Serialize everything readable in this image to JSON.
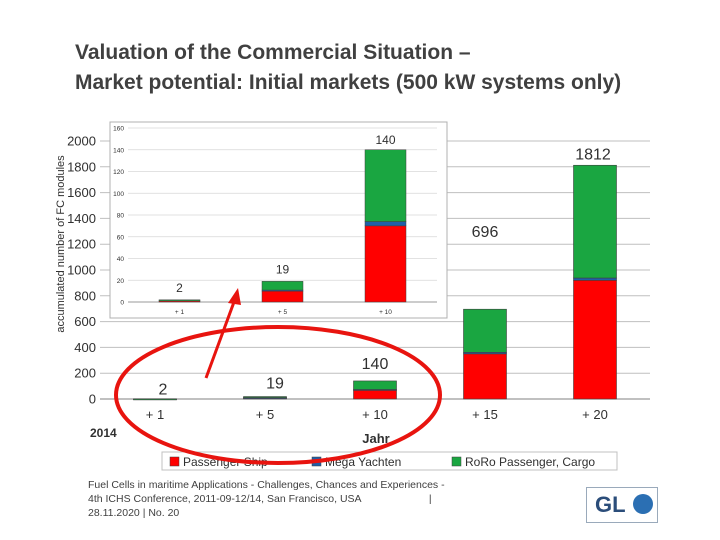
{
  "title": {
    "line1": "Valuation of the Commercial Situation –",
    "line2": "Market potential: Initial markets (500 kW systems only)"
  },
  "chart_data": [
    {
      "type": "bar",
      "stacked": true,
      "ylabel": "accumulated number of FC modules",
      "xlabel": "Jahr",
      "base_year_label": "2014",
      "categories": [
        "+ 1",
        "+ 5",
        "+ 10",
        "+ 15",
        "+ 20"
      ],
      "ylim": [
        0,
        2000
      ],
      "yticks": [
        0,
        200,
        400,
        600,
        800,
        1000,
        1200,
        1400,
        1600,
        1800,
        2000
      ],
      "grid": true,
      "series": [
        {
          "name": "Passenger Ship",
          "color": "#ff0000",
          "values": [
            1,
            10,
            70,
            350,
            920
          ]
        },
        {
          "name": "Mega Yachten",
          "color": "#1f5fa8",
          "values": [
            0,
            1,
            4,
            12,
            18
          ]
        },
        {
          "name": "RoRo Passenger, Cargo",
          "color": "#1aa641",
          "values": [
            1,
            8,
            66,
            334,
            874
          ]
        }
      ],
      "totals": [
        2,
        19,
        140,
        696,
        1812
      ],
      "total_labels": [
        "2",
        "19",
        "140",
        "696",
        "1812"
      ],
      "legend": {
        "placement": "bottom",
        "entries": [
          "Passenger Ship",
          "Mega Yachten",
          "RoRo Passenger, Cargo"
        ]
      }
    },
    {
      "type": "bar",
      "stacked": true,
      "inset": true,
      "categories": [
        "+ 1",
        "+ 5",
        "+ 10"
      ],
      "ylim": [
        0,
        160
      ],
      "yticks": [
        0,
        20,
        40,
        60,
        80,
        100,
        120,
        140,
        160
      ],
      "series": [
        {
          "name": "Passenger Ship",
          "color": "#ff0000",
          "values": [
            1,
            10,
            70
          ]
        },
        {
          "name": "Mega Yachten",
          "color": "#1f5fa8",
          "values": [
            0,
            1,
            4
          ]
        },
        {
          "name": "RoRo Passenger, Cargo",
          "color": "#1aa641",
          "values": [
            1,
            8,
            66
          ]
        }
      ],
      "total_labels": [
        "2",
        "19",
        "140"
      ]
    }
  ],
  "footer": {
    "line1": "Fuel Cells in maritime Applications - Challenges, Chances and Experiences -",
    "line2": "4th ICHS Conference, 2011-09-12/14, San Francisco, USA",
    "sep": "|",
    "line3": "28.11.2020 | No. 20"
  },
  "logo": {
    "text": "GL"
  }
}
